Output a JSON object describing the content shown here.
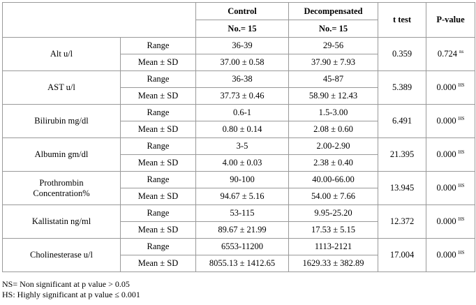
{
  "header": {
    "control": "Control",
    "control_n": "No.= 15",
    "decompensated": "Decompensated",
    "decompensated_n": "No.= 15",
    "t_test": "t test",
    "p_value": "P-value"
  },
  "rows": [
    {
      "parameter": "Alt u/l",
      "range_label": "Range",
      "mean_label": "Mean ± SD",
      "control_range": "36-39",
      "control_mean": "37.00 ± 0.58",
      "decompensated_range": "29-56",
      "decompensated_mean": "37.90 ± 7.93",
      "t": "0.359",
      "p": "0.724",
      "significance": "ns"
    },
    {
      "parameter": "AST u/l",
      "range_label": "Range",
      "mean_label": "Mean ± SD",
      "control_range": "36-38",
      "control_mean": "37.73 ± 0.46",
      "decompensated_range": "45-87",
      "decompensated_mean": "58.90 ± 12.43",
      "t": "5.389",
      "p": "0.000",
      "significance": "HS"
    },
    {
      "parameter": "Bilirubin mg/dl",
      "range_label": "Range",
      "mean_label": "Mean ± SD",
      "control_range": "0.6-1",
      "control_mean": "0.80 ± 0.14",
      "decompensated_range": "1.5-3.00",
      "decompensated_mean": "2.08 ± 0.60",
      "t": "6.491",
      "p": "0.000",
      "significance": "HS"
    },
    {
      "parameter": "Albumin gm/dl",
      "range_label": "Range",
      "mean_label": "Mean ± SD",
      "control_range": "3-5",
      "control_mean": "4.00 ± 0.03",
      "decompensated_range": "2.00-2.90",
      "decompensated_mean": "2.38 ± 0.40",
      "t": "21.395",
      "p": "0.000",
      "significance": "HS"
    },
    {
      "parameter": "Prothrombin Concentration%",
      "range_label": "Range",
      "mean_label": "Mean ± SD",
      "control_range": "90-100",
      "control_mean": "94.67 ± 5.16",
      "decompensated_range": "40.00-66.00",
      "decompensated_mean": "54.00 ± 7.66",
      "t": "13.945",
      "p": "0.000",
      "significance": "HS"
    },
    {
      "parameter": "Kallistatin ng/ml",
      "range_label": "Range",
      "mean_label": "Mean ± SD",
      "control_range": "53-115",
      "control_mean": "89.67 ± 21.99",
      "decompensated_range": "9.95-25.20",
      "decompensated_mean": "17.53 ± 5.15",
      "t": "12.372",
      "p": "0.000",
      "significance": "HS"
    },
    {
      "parameter": "Cholinesterase u/l",
      "range_label": "Range",
      "mean_label": "Mean ± SD",
      "control_range": "6553-11200",
      "control_mean": "8055.13 ± 1412.65",
      "decompensated_range": "1113-2121",
      "decompensated_mean": "1629.33 ± 382.89",
      "t": "17.004",
      "p": "0.000",
      "significance": "HS"
    }
  ],
  "footnotes": [
    "NS= Non significant at p value > 0.05",
    "HS: Highly significant at p value ≤ 0.001"
  ]
}
